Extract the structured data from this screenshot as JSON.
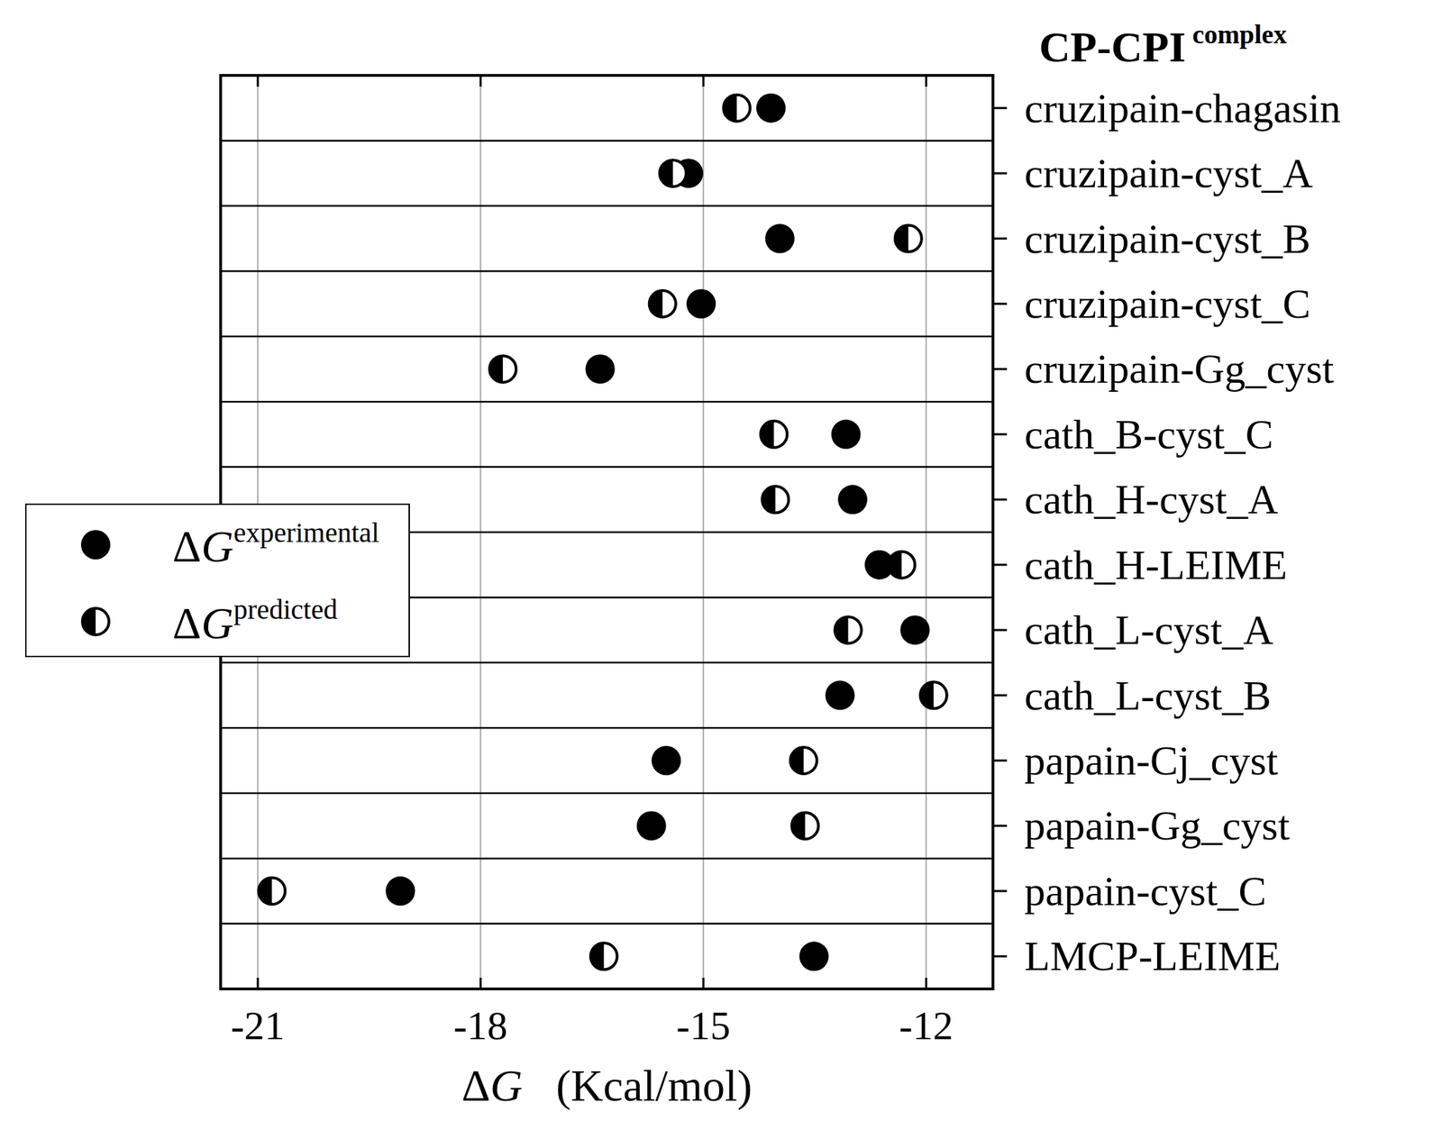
{
  "chart_data": {
    "type": "dot",
    "title": "CP-CPI complex",
    "x_label": "ΔG   (Kcal/mol)",
    "orientation": "horizontal",
    "categories": [
      "cruzipain-chagasin",
      "cruzipain-cyst_A",
      "cruzipain-cyst_B",
      "cruzipain-cyst_C",
      "cruzipain-Gg_cyst",
      "cath_B-cyst_C",
      "cath_H-cyst_A",
      "cath_H-LEIME",
      "cath_L-cyst_A",
      "cath_L-cyst_B",
      "papain-Cj_cyst",
      "papain-Gg_cyst",
      "papain-cyst_C",
      "LMCP-LEIME"
    ],
    "series": [
      {
        "name": "ΔGexperimental",
        "color": "#000000",
        "marker": "filled",
        "values": [
          -14.09,
          -15.2,
          -13.97,
          -15.03,
          -16.39,
          -13.08,
          -12.99,
          -12.63,
          -12.15,
          -13.16,
          -15.5,
          -15.7,
          -19.08,
          -13.51
        ]
      },
      {
        "name": "ΔGpredicted",
        "color": "#000000",
        "marker": "half-filled",
        "values": [
          -14.55,
          -15.41,
          -12.24,
          -15.55,
          -17.7,
          -14.05,
          -14.03,
          -12.33,
          -13.05,
          -11.9,
          -13.65,
          -13.63,
          -20.81,
          -16.34
        ]
      }
    ],
    "xlim": [
      -21.5,
      -11.1
    ],
    "xticks": [
      -21,
      -18,
      -15,
      -12
    ],
    "grid": true,
    "legend": "center left"
  }
}
